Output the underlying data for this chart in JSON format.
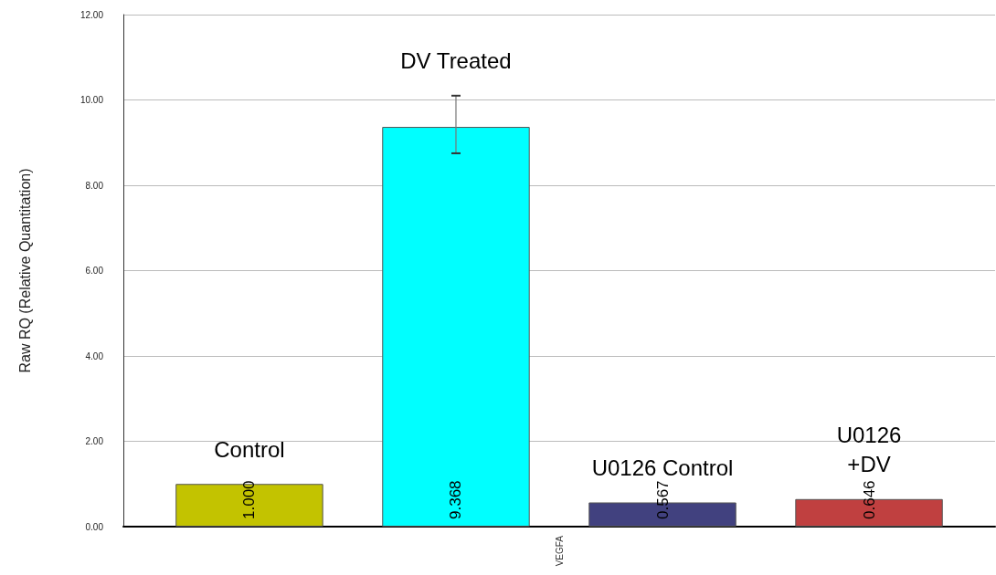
{
  "chart_data": {
    "type": "bar",
    "ylabel": "Raw RQ (Relative Quantitation)",
    "categories": [
      "VEGFA"
    ],
    "series": [
      {
        "name": "Control",
        "color": "#c3c300",
        "values": [
          1.0
        ],
        "value_labels": [
          "1.000"
        ]
      },
      {
        "name": "DV Treated",
        "color": "#00ffff",
        "values": [
          9.368
        ],
        "value_labels": [
          "9.368"
        ],
        "errors": [
          [
            8.75,
            10.1
          ]
        ]
      },
      {
        "name": "U0126 Control",
        "color": "#41417f",
        "values": [
          0.567
        ],
        "value_labels": [
          "0.567"
        ]
      },
      {
        "name": "U0126\n+DV",
        "color": "#c04040",
        "values": [
          0.646
        ],
        "value_labels": [
          "0.646"
        ]
      }
    ],
    "ylim": [
      0,
      12
    ],
    "yticks": [
      {
        "value": 0,
        "label": "0.00"
      },
      {
        "value": 2,
        "label": "2.00"
      },
      {
        "value": 4,
        "label": "4.00"
      },
      {
        "value": 6,
        "label": "6.00"
      },
      {
        "value": 8,
        "label": "8.00"
      },
      {
        "value": 10,
        "label": "10.00"
      },
      {
        "value": 12,
        "label": "12.00"
      }
    ],
    "grid": "y",
    "legend": false
  }
}
